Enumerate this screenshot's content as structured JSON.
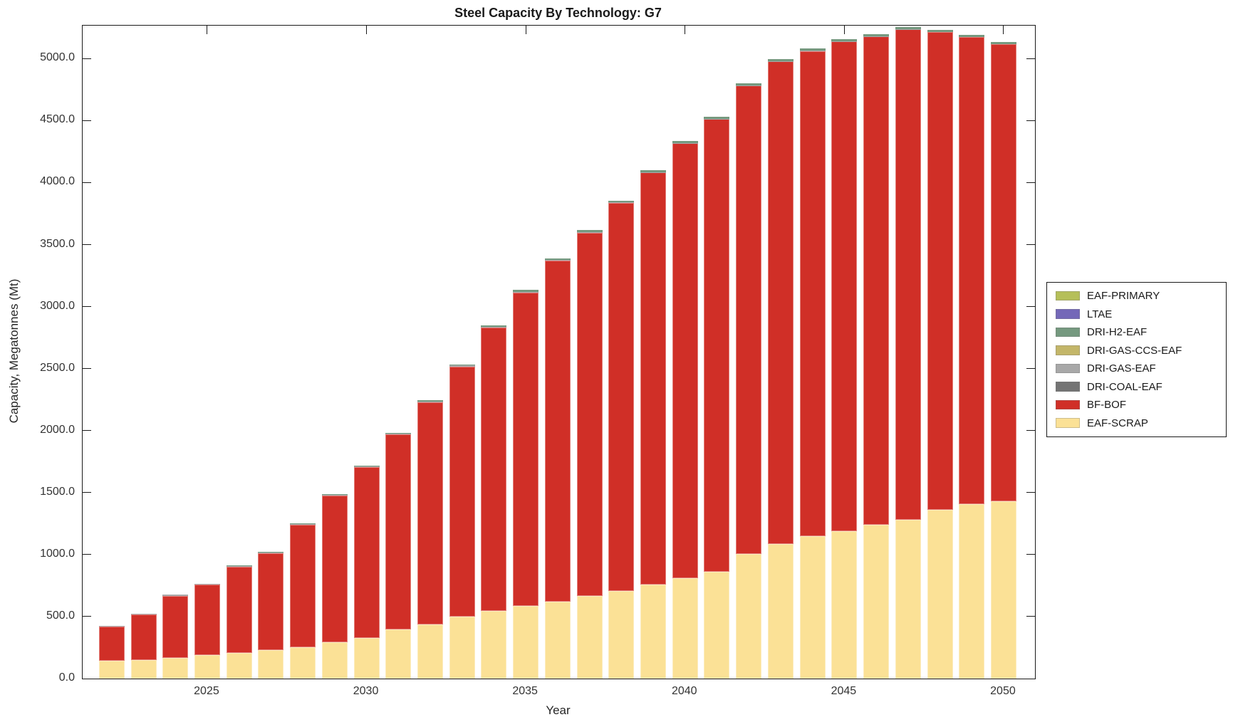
{
  "title": "Steel Capacity By Technology: G7",
  "chart_data": {
    "type": "bar",
    "stacked": true,
    "title": "Steel Capacity By Technology: G7",
    "xlabel": "Year",
    "ylabel": "Capacity, Megatonnes (Mt)",
    "x": [
      2022,
      2023,
      2024,
      2025,
      2026,
      2027,
      2028,
      2029,
      2030,
      2031,
      2032,
      2033,
      2034,
      2035,
      2036,
      2037,
      2038,
      2039,
      2040,
      2041,
      2042,
      2043,
      2044,
      2045,
      2046,
      2047,
      2048,
      2049,
      2050
    ],
    "ylim": [
      0,
      5266
    ],
    "y_tick_interval": 500,
    "y_tick_labels": [
      "0.0",
      "500.0",
      "1000.0",
      "1500.0",
      "2000.0",
      "2500.0",
      "3000.0",
      "3500.0",
      "4000.0",
      "4500.0",
      "5000.0"
    ],
    "x_tick_years": [
      2025,
      2030,
      2035,
      2040,
      2045,
      2050
    ],
    "x_tick_labels": [
      "2025",
      "2030",
      "2035",
      "2040",
      "2045",
      "2050"
    ],
    "grid": false,
    "box": true,
    "series_bottom_to_top": [
      {
        "name": "EAF-SCRAP",
        "color": "#FBE196",
        "values": [
          145,
          152,
          168,
          190,
          208,
          230,
          253,
          293,
          328,
          398,
          437,
          500,
          546,
          586,
          621,
          667,
          707,
          759,
          810,
          862,
          1005,
          1085,
          1150,
          1190,
          1240,
          1283,
          1360,
          1405,
          1428
        ]
      },
      {
        "name": "BF-BOF",
        "color": "#D02F27",
        "values": [
          274,
          366,
          500,
          567,
          693,
          780,
          986,
          1183,
          1375,
          1569,
          1792,
          2018,
          2285,
          2529,
          2751,
          2930,
          3130,
          3322,
          3507,
          3650,
          3777,
          3892,
          3912,
          3948,
          3941,
          3952,
          3855,
          3768,
          3688
        ]
      },
      {
        "name": "DRI-COAL-EAF",
        "color": "#747474",
        "values": [
          0,
          0,
          0,
          0,
          0,
          0,
          0,
          0,
          0,
          0,
          0,
          0,
          0,
          0,
          0,
          0,
          0,
          0,
          0,
          0,
          0,
          0,
          0,
          0,
          0,
          0,
          0,
          0,
          0
        ]
      },
      {
        "name": "DRI-GAS-EAF",
        "color": "#A8A8A8",
        "values": [
          6,
          7,
          7,
          8,
          8,
          8,
          8,
          8,
          8,
          8,
          7,
          7,
          6,
          6,
          5,
          5,
          4,
          4,
          3,
          3,
          2,
          2,
          2,
          1,
          1,
          1,
          0,
          0,
          0
        ]
      },
      {
        "name": "DRI-GAS-CCS-EAF",
        "color": "#C3B669",
        "values": [
          0,
          0,
          0,
          0,
          0,
          0,
          0,
          0,
          0,
          0,
          0,
          0,
          0,
          0,
          0,
          0,
          0,
          0,
          0,
          0,
          0,
          0,
          0,
          0,
          0,
          0,
          0,
          0,
          0
        ]
      },
      {
        "name": "DRI-H2-EAF",
        "color": "#75997F",
        "values": [
          0,
          0,
          0,
          0,
          3,
          4,
          5,
          6,
          7,
          8,
          9,
          10,
          11,
          12,
          13,
          13,
          14,
          15,
          15,
          15,
          16,
          16,
          16,
          16,
          16,
          17,
          17,
          17,
          17
        ]
      },
      {
        "name": "LTAE",
        "color": "#7468B8",
        "values": [
          0,
          0,
          0,
          0,
          0,
          0,
          0,
          0,
          0,
          0,
          0,
          0,
          0,
          0,
          0,
          0,
          0,
          0,
          0,
          0,
          0,
          0,
          0,
          0,
          0,
          0,
          0,
          0,
          0
        ]
      },
      {
        "name": "EAF-PRIMARY",
        "color": "#B5BF59",
        "values": [
          0,
          0,
          0,
          0,
          0,
          0,
          0,
          0,
          0,
          0,
          0,
          0,
          0,
          0,
          0,
          0,
          0,
          0,
          0,
          0,
          0,
          0,
          0,
          0,
          0,
          0,
          0,
          0,
          0
        ]
      }
    ],
    "legend": {
      "position": "right",
      "entries_top_to_bottom": [
        "EAF-PRIMARY",
        "LTAE",
        "DRI-H2-EAF",
        "DRI-GAS-CCS-EAF",
        "DRI-GAS-EAF",
        "DRI-COAL-EAF",
        "BF-BOF",
        "EAF-SCRAP"
      ]
    }
  }
}
